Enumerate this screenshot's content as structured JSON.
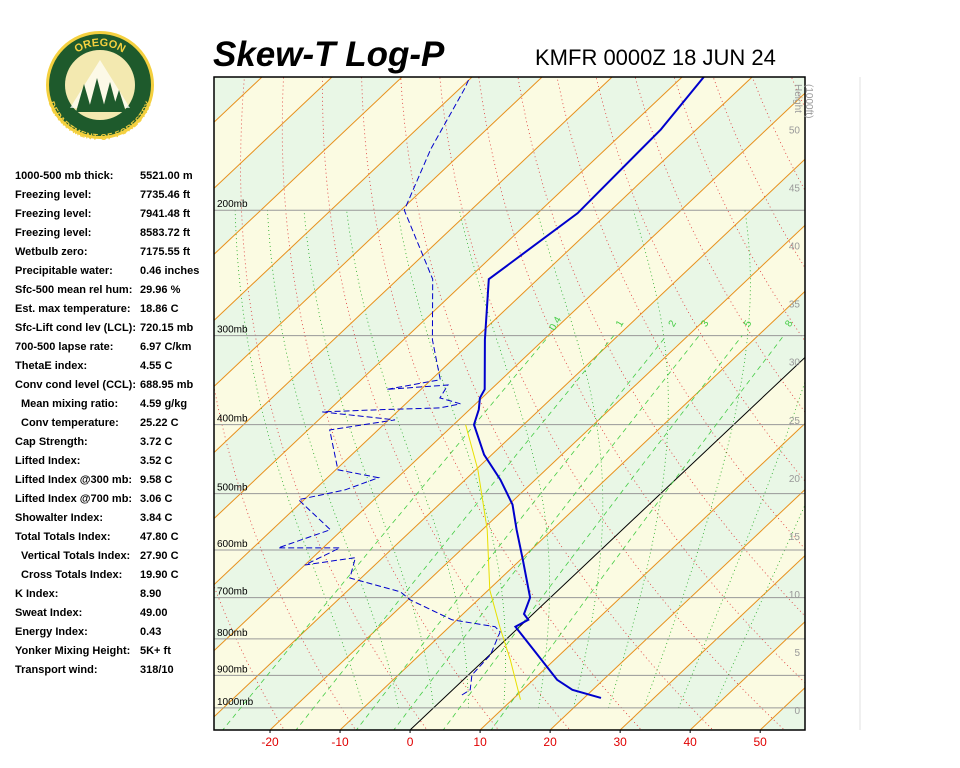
{
  "logo": {
    "top": "OREGON",
    "bottom": "DEPARTMENT OF FORESTRY"
  },
  "header": {
    "title": "Skew-T Log-P",
    "station": "KMFR 0000Z 18 JUN 24"
  },
  "stats": [
    [
      "1000-500 mb thick:",
      "5521.00 m"
    ],
    [
      "Freezing level:",
      "7735.46 ft"
    ],
    [
      "Freezing level:",
      "7941.48 ft"
    ],
    [
      "Freezing level:",
      "8583.72 ft"
    ],
    [
      "Wetbulb zero:",
      "7175.55 ft"
    ],
    [
      "Precipitable water:",
      "0.46 inches"
    ],
    [
      "Sfc-500 mean rel hum:",
      "29.96 %"
    ],
    [
      "Est. max temperature:",
      "18.86 C"
    ],
    [
      "Sfc-Lift cond lev (LCL):",
      "720.15 mb"
    ],
    [
      "700-500 lapse rate:",
      "6.97 C/km"
    ],
    [
      "ThetaE index:",
      "4.55 C"
    ],
    [
      "Conv cond level (CCL):",
      "688.95 mb"
    ],
    [
      "Mean mixing ratio:",
      "4.59 g/kg"
    ],
    [
      "Conv temperature:",
      "25.22 C"
    ],
    [
      "Cap Strength:",
      "3.72 C"
    ],
    [
      "Lifted Index:",
      "3.52 C"
    ],
    [
      "Lifted Index @300 mb:",
      "9.58 C"
    ],
    [
      "Lifted Index @700 mb:",
      "3.06 C"
    ],
    [
      "Showalter Index:",
      "3.84 C"
    ],
    [
      "Total Totals Index:",
      "47.80 C"
    ],
    [
      "Vertical Totals Index:",
      "27.90 C"
    ],
    [
      "Cross Totals Index:",
      "19.90 C"
    ],
    [
      "K Index:",
      "8.90"
    ],
    [
      "Sweat Index:",
      "49.00"
    ],
    [
      "Energy Index:",
      "0.43"
    ],
    [
      "Yonker Mixing Height:",
      "5K+ ft"
    ],
    [
      "Transport wind:",
      "318/10"
    ]
  ],
  "chart_data": {
    "type": "skewt",
    "xlim": [
      -28,
      56.4
    ],
    "xticks": [
      -20,
      -10,
      0,
      10,
      20,
      30,
      40,
      50
    ],
    "ylim": [
      1074,
      130
    ],
    "log_y": true,
    "yticks": [
      {
        "value": 1000,
        "label": "1000mb"
      },
      {
        "value": 900,
        "label": "900mb"
      },
      {
        "value": 800,
        "label": "800mb"
      },
      {
        "value": 700,
        "label": "700mb"
      },
      {
        "value": 600,
        "label": "600mb"
      },
      {
        "value": 500,
        "label": "500mb"
      },
      {
        "value": 400,
        "label": "400mb"
      },
      {
        "value": 300,
        "label": "300mb"
      },
      {
        "value": 200,
        "label": "200mb"
      }
    ],
    "height_label": [
      "Height",
      "(1000ft)"
    ],
    "height_lim": [
      -1.7,
      54.5
    ],
    "height_ticks": [
      0,
      5,
      10,
      15,
      20,
      25,
      30,
      35,
      40,
      45,
      50
    ],
    "mixing_ratios": [
      0.4,
      1,
      2,
      3,
      5,
      8
    ],
    "series": [
      {
        "color": "#0000cc",
        "style": "solid",
        "pressure": [
          968,
          943,
          913,
          842,
          769,
          752,
          738,
          700,
          619,
          562,
          518,
          478,
          441,
          400,
          381,
          367,
          357,
          304,
          250,
          202,
          154,
          130
        ],
        "temperature": [
          22.4,
          17.1,
          13.4,
          6.8,
          -0.6,
          0.2,
          -1.3,
          -2.9,
          -9.7,
          -15.1,
          -19.5,
          -25.0,
          -31.1,
          -37.1,
          -38.7,
          -40.3,
          -40.9,
          -48.4,
          -57.0,
          -54.3,
          -55.1,
          -56.9
        ]
      },
      {
        "color": "#0000cc",
        "style": "dashed",
        "pressure": [
          959,
          943,
          899,
          842,
          782,
          769,
          752,
          705,
          687,
          657,
          615,
          630,
          596,
          596,
          562,
          510,
          494,
          475,
          463,
          407,
          394,
          384,
          381,
          379,
          374,
          367,
          352,
          357,
          346,
          304,
          250,
          200,
          164,
          135,
          130
        ],
        "temperature": [
          2.1,
          2.5,
          0.5,
          0.1,
          -2.0,
          -3.5,
          -10.7,
          -19.7,
          -22.3,
          -31.6,
          -33.9,
          -40.0,
          -37.6,
          -46.4,
          -41.7,
          -50.8,
          -45.6,
          -42.7,
          -49.7,
          -56.9,
          -49.1,
          -60.7,
          -52.0,
          -44.5,
          -42.2,
          -46.0,
          -46.8,
          -54.9,
          -48.7,
          -55.9,
          -65.0,
          -79.5,
          -85.0,
          -89.3,
          -90.3
        ]
      },
      {
        "color": "#e8e000",
        "style": "solid",
        "pressure": [
          974,
          856,
          772,
          683,
          562,
          463,
          400
        ],
        "temperature": [
          11.2,
          3.7,
          -2.6,
          -9.8,
          -19.3,
          -29.7,
          -38.3
        ]
      }
    ]
  }
}
